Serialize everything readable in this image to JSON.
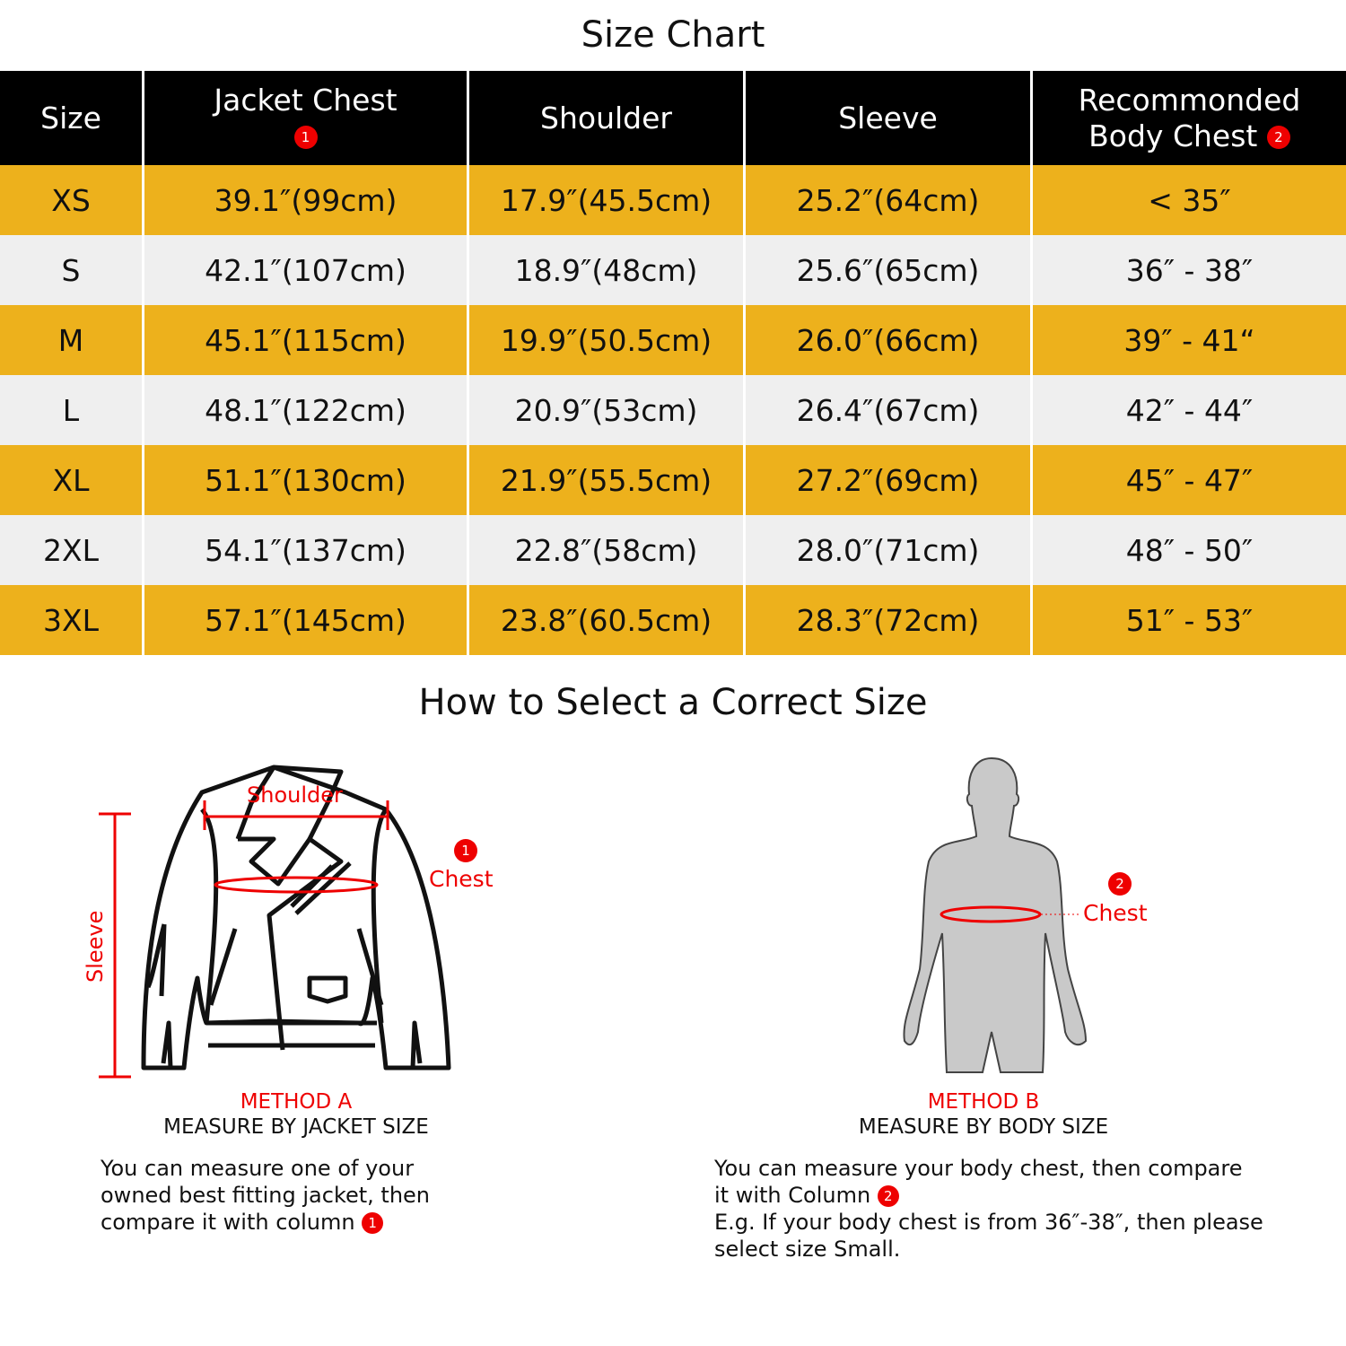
{
  "title": "Size Chart",
  "headers": {
    "size": "Size",
    "jacket_chest": "Jacket Chest",
    "jacket_badge": "1",
    "shoulder": "Shoulder",
    "sleeve": "Sleeve",
    "rec_line1": "Recommonded",
    "rec_line2": "Body  Chest",
    "rec_badge": "2"
  },
  "rows": [
    {
      "size": "XS",
      "chest": "39.1″(99cm)",
      "shoulder": "17.9″(45.5cm)",
      "sleeve": "25.2″(64cm)",
      "body": "< 35″"
    },
    {
      "size": "S",
      "chest": "42.1″(107cm)",
      "shoulder": "18.9″(48cm)",
      "sleeve": "25.6″(65cm)",
      "body": "36″ - 38″"
    },
    {
      "size": "M",
      "chest": "45.1″(115cm)",
      "shoulder": "19.9″(50.5cm)",
      "sleeve": "26.0″(66cm)",
      "body": "39″ - 41“"
    },
    {
      "size": "L",
      "chest": "48.1″(122cm)",
      "shoulder": "20.9″(53cm)",
      "sleeve": "26.4″(67cm)",
      "body": "42″ - 44″"
    },
    {
      "size": "XL",
      "chest": "51.1″(130cm)",
      "shoulder": "21.9″(55.5cm)",
      "sleeve": "27.2″(69cm)",
      "body": "45″ - 47″"
    },
    {
      "size": "2XL",
      "chest": "54.1″(137cm)",
      "shoulder": "22.8″(58cm)",
      "sleeve": "28.0″(71cm)",
      "body": "48″ - 50″"
    },
    {
      "size": "3XL",
      "chest": "57.1″(145cm)",
      "shoulder": "23.8″(60.5cm)",
      "sleeve": "28.3″(72cm)",
      "body": "51″ - 53″"
    }
  ],
  "how_title": "How to Select a Correct Size",
  "method_a": {
    "label_shoulder": "Shoulder",
    "label_chest": "Chest",
    "label_sleeve": "Sleeve",
    "badge": "1",
    "title": "METHOD A",
    "subtitle": "MEASURE BY JACKET SIZE",
    "desc1": "You can measure one of your",
    "desc2": "owned best fitting jacket, then",
    "desc3": "compare it with column"
  },
  "method_b": {
    "label_chest": "Chest",
    "badge": "2",
    "title": "METHOD B",
    "subtitle": "MEASURE BY BODY SIZE",
    "desc1": "You can measure your body chest, then compare",
    "desc2": "it with Column",
    "desc3": "E.g. If your body chest is from 36″-38″, then please",
    "desc4": "select size Small."
  },
  "colors": {
    "gold": "#EDB11C",
    "gray": "#EFEFEF",
    "header": "#000000",
    "accent": "#E00000"
  }
}
